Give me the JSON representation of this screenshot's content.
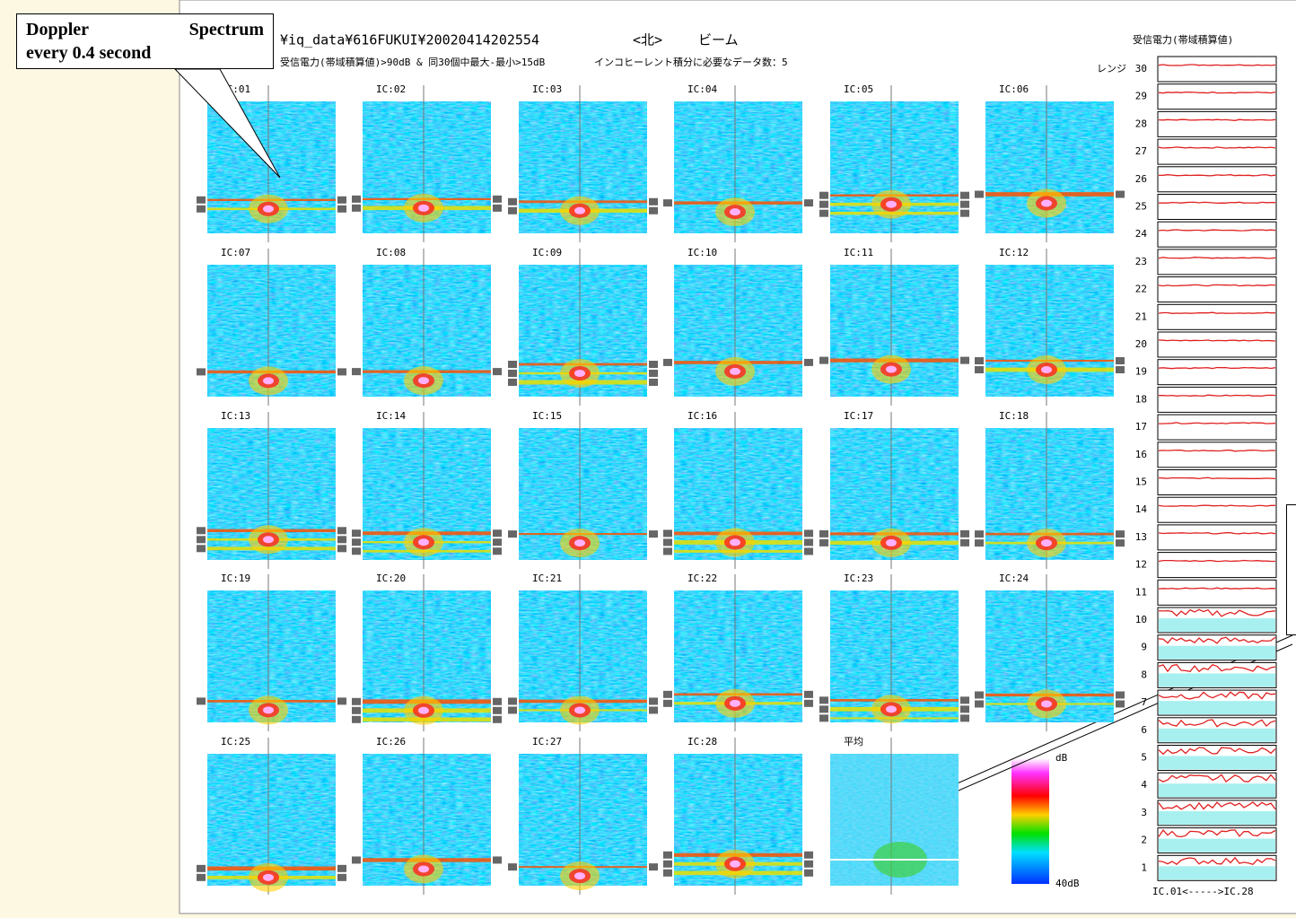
{
  "header": {
    "path": "¥iq_data¥616FUKUI¥20020414202554",
    "direction": "<北>",
    "mode": "ビーム",
    "condition": "受信電力(帯域積算値)>90dB & 同30個中最大-最小>15dB",
    "count": "インコヒーレント積分に必要なデータ数：5"
  },
  "panels": [
    "IC:01",
    "IC:02",
    "IC:03",
    "IC:04",
    "IC:05",
    "IC:06",
    "IC:07",
    "IC:08",
    "IC:09",
    "IC:10",
    "IC:11",
    "IC:12",
    "IC:13",
    "IC:14",
    "IC:15",
    "IC:16",
    "IC:17",
    "IC:18",
    "IC:19",
    "IC:20",
    "IC:21",
    "IC:22",
    "IC:23",
    "IC:24",
    "IC:25",
    "IC:26",
    "IC:27",
    "IC:28",
    "平均"
  ],
  "colorbar": {
    "top": "dB",
    "bottom": "40dB"
  },
  "power_panel": {
    "title": "受信電力(帯域積算値)",
    "range_label": "レンジ",
    "ranges": [
      30,
      29,
      28,
      27,
      26,
      25,
      24,
      23,
      22,
      21,
      20,
      19,
      18,
      17,
      16,
      15,
      14,
      13,
      12,
      11,
      10,
      9,
      8,
      7,
      6,
      5,
      4,
      3,
      2,
      1
    ],
    "footer": "IC.01<----->IC.28"
  },
  "callout": {
    "line1": "Doppler Spectrum",
    "line2": "every 0.4 second"
  }
}
